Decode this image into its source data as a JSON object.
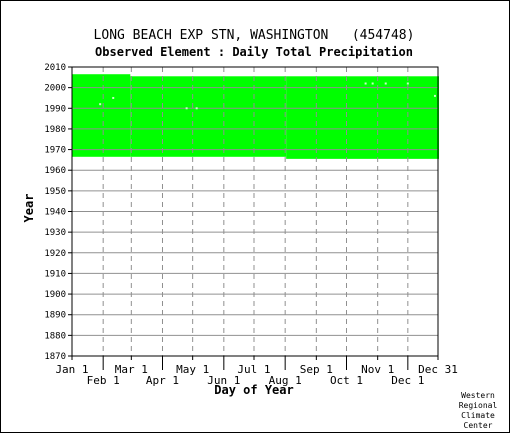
{
  "chart_data": {
    "type": "area",
    "title": "LONG BEACH EXP STN, WASHINGTON   (454748)",
    "subtitle": "Observed Element : Daily Total Precipitation",
    "xlabel": "Day of Year",
    "ylabel": "Year",
    "xlim": [
      1,
      365
    ],
    "ylim": [
      1870,
      2010
    ],
    "yticks": [
      1870,
      1880,
      1890,
      1900,
      1910,
      1920,
      1930,
      1940,
      1950,
      1960,
      1970,
      1980,
      1990,
      2000,
      2010
    ],
    "grid": true,
    "x_ticks_upper": [
      {
        "label": "Jan 1",
        "day": 1
      },
      {
        "label": "Mar 1",
        "day": 60
      },
      {
        "label": "May 1",
        "day": 121
      },
      {
        "label": "Jul 1",
        "day": 182
      },
      {
        "label": "Sep 1",
        "day": 244
      },
      {
        "label": "Nov 1",
        "day": 305
      },
      {
        "label": "Dec 31",
        "day": 365
      }
    ],
    "x_ticks_lower": [
      {
        "label": "Feb 1",
        "day": 32
      },
      {
        "label": "Apr 1",
        "day": 91
      },
      {
        "label": "Jun 1",
        "day": 152
      },
      {
        "label": "Aug 1",
        "day": 213
      },
      {
        "label": "Oct 1",
        "day": 274
      },
      {
        "label": "Dec 1",
        "day": 335
      }
    ],
    "data_color": "#00ff00",
    "coverage": [
      {
        "day_start": 1,
        "day_end": 58,
        "year_start": 1967,
        "year_end": 2006
      },
      {
        "day_start": 59,
        "day_end": 213,
        "year_start": 1967,
        "year_end": 2005
      },
      {
        "day_start": 214,
        "day_end": 365,
        "year_start": 1966,
        "year_end": 2005
      }
    ],
    "missing_points": [
      {
        "day": 29,
        "year": 1992
      },
      {
        "day": 42,
        "year": 1995
      },
      {
        "day": 115,
        "year": 1990
      },
      {
        "day": 125,
        "year": 1990
      },
      {
        "day": 293,
        "year": 2002
      },
      {
        "day": 300,
        "year": 2002
      },
      {
        "day": 313,
        "year": 2002
      },
      {
        "day": 335,
        "year": 2002
      },
      {
        "day": 362,
        "year": 1996
      }
    ]
  },
  "credit": {
    "line1": "Western",
    "line2": "Regional",
    "line3": "Climate",
    "line4": "Center"
  }
}
